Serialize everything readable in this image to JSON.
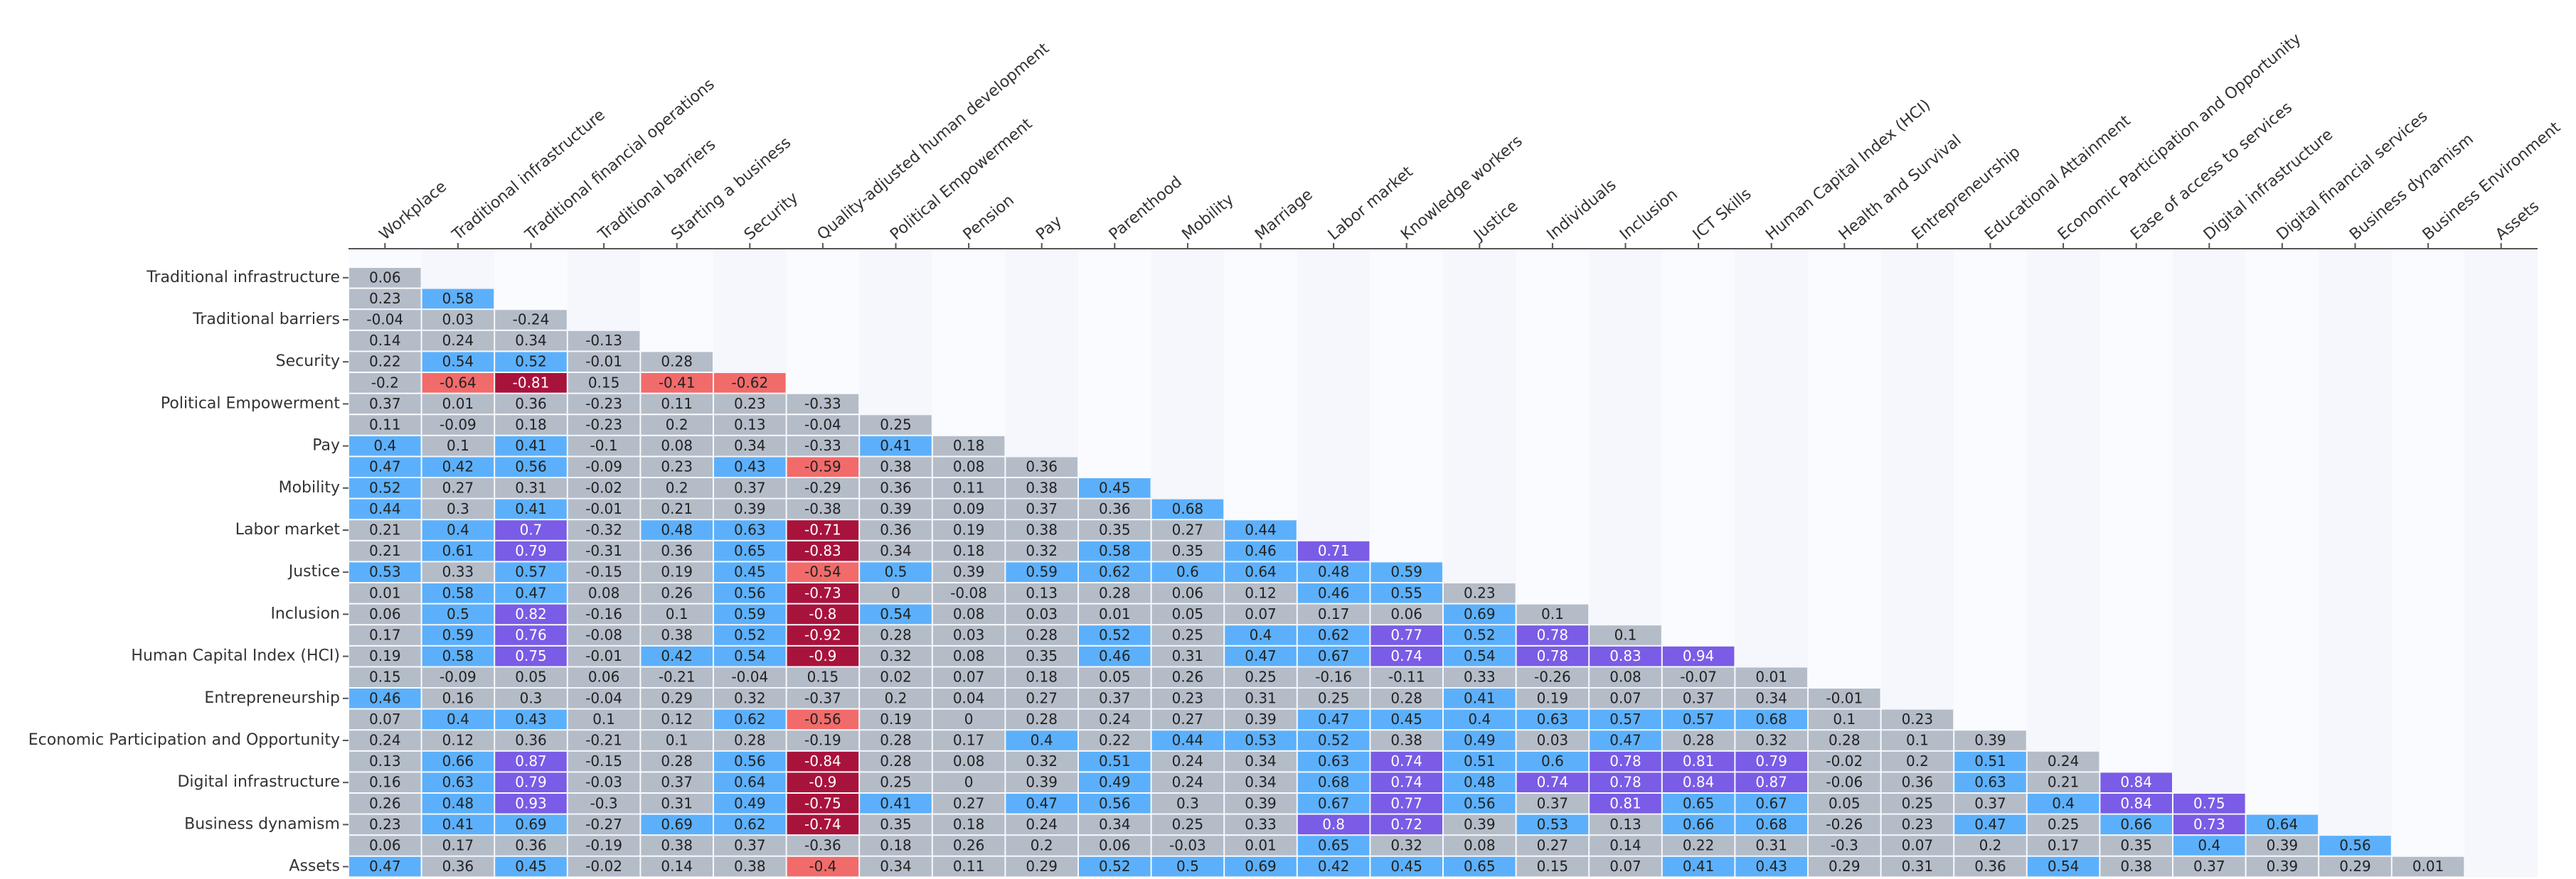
{
  "chart_data": {
    "type": "heatmap",
    "x_labels": [
      "Workplace",
      "Traditional infrastructure",
      "Traditional financial operations",
      "Traditional barriers",
      "Starting a business",
      "Security",
      "Quality-adjusted human development",
      "Political Empowerment",
      "Pension",
      "Pay",
      "Parenthood",
      "Mobility",
      "Marriage",
      "Labor market",
      "Knowledge workers",
      "Justice",
      "Individuals",
      "Inclusion",
      "ICT Skills",
      "Human Capital Index (HCI)",
      "Health and Survival",
      "Entrepreneurship",
      "Educational Attainment",
      "Economic Participation and Opportunity",
      "Ease of access to services",
      "Digital infrastructure",
      "Digital financial services",
      "Business dynamism",
      "Business Environment",
      "Assets"
    ],
    "y_labels": [
      "Traditional infrastructure",
      null,
      "Traditional barriers",
      null,
      "Security",
      null,
      "Political Empowerment",
      null,
      "Pay",
      null,
      "Mobility",
      null,
      "Labor market",
      null,
      "Justice",
      null,
      "Inclusion",
      null,
      "Human Capital Index (HCI)",
      null,
      "Entrepreneurship",
      null,
      "Economic Participation and Opportunity",
      null,
      "Digital infrastructure",
      null,
      "Business dynamism",
      null,
      "Assets"
    ],
    "values": [
      [
        0.06
      ],
      [
        0.23,
        0.58
      ],
      [
        -0.04,
        0.03,
        -0.24
      ],
      [
        0.14,
        0.24,
        0.34,
        -0.13
      ],
      [
        0.22,
        0.54,
        0.52,
        -0.01,
        0.28
      ],
      [
        -0.2,
        -0.64,
        -0.81,
        0.15,
        -0.41,
        -0.62
      ],
      [
        0.37,
        0.01,
        0.36,
        -0.23,
        0.11,
        0.23,
        -0.33
      ],
      [
        0.11,
        -0.09,
        0.18,
        -0.23,
        0.2,
        0.13,
        -0.04,
        0.25
      ],
      [
        0.4,
        0.1,
        0.41,
        -0.1,
        0.08,
        0.34,
        -0.33,
        0.41,
        0.18
      ],
      [
        0.47,
        0.42,
        0.56,
        -0.09,
        0.23,
        0.43,
        -0.59,
        0.38,
        0.08,
        0.36
      ],
      [
        0.52,
        0.27,
        0.31,
        -0.02,
        0.2,
        0.37,
        -0.29,
        0.36,
        0.11,
        0.38,
        0.45
      ],
      [
        0.44,
        0.3,
        0.41,
        -0.01,
        0.21,
        0.39,
        -0.38,
        0.39,
        0.09,
        0.37,
        0.36,
        0.68
      ],
      [
        0.21,
        0.4,
        0.7,
        -0.32,
        0.48,
        0.63,
        -0.71,
        0.36,
        0.19,
        0.38,
        0.35,
        0.27,
        0.44
      ],
      [
        0.21,
        0.61,
        0.79,
        -0.31,
        0.36,
        0.65,
        -0.83,
        0.34,
        0.18,
        0.32,
        0.58,
        0.35,
        0.46,
        0.71
      ],
      [
        0.53,
        0.33,
        0.57,
        -0.15,
        0.19,
        0.45,
        -0.54,
        0.5,
        0.39,
        0.59,
        0.62,
        0.6,
        0.64,
        0.48,
        0.59
      ],
      [
        0.01,
        0.58,
        0.47,
        0.08,
        0.26,
        0.56,
        -0.73,
        0,
        -0.08,
        0.13,
        0.28,
        0.06,
        0.12,
        0.46,
        0.55,
        0.23
      ],
      [
        0.06,
        0.5,
        0.82,
        -0.16,
        0.1,
        0.59,
        -0.8,
        0.54,
        0.08,
        0.03,
        0.01,
        0.05,
        0.07,
        0.17,
        0.06,
        0.69,
        0.1
      ],
      [
        0.17,
        0.59,
        0.76,
        -0.08,
        0.38,
        0.52,
        -0.92,
        0.28,
        0.03,
        0.28,
        0.52,
        0.25,
        0.4,
        0.62,
        0.77,
        0.52,
        0.78,
        0.1
      ],
      [
        0.19,
        0.58,
        0.75,
        -0.01,
        0.42,
        0.54,
        -0.9,
        0.32,
        0.08,
        0.35,
        0.46,
        0.31,
        0.47,
        0.67,
        0.74,
        0.54,
        0.78,
        0.83,
        0.94
      ],
      [
        0.15,
        -0.09,
        0.05,
        0.06,
        -0.21,
        -0.04,
        0.15,
        0.02,
        0.07,
        0.18,
        0.05,
        0.26,
        0.25,
        -0.16,
        -0.11,
        0.33,
        -0.26,
        0.08,
        -0.07,
        0.01
      ],
      [
        0.46,
        0.16,
        0.3,
        -0.04,
        0.29,
        0.32,
        -0.37,
        0.2,
        0.04,
        0.27,
        0.37,
        0.23,
        0.31,
        0.25,
        0.28,
        0.41,
        0.19,
        0.07,
        0.37,
        0.34,
        -0.01
      ],
      [
        0.07,
        0.4,
        0.43,
        0.1,
        0.12,
        0.62,
        -0.56,
        0.19,
        0,
        0.28,
        0.24,
        0.27,
        0.39,
        0.47,
        0.45,
        0.4,
        0.63,
        0.57,
        0.57,
        0.68,
        0.1,
        0.23
      ],
      [
        0.24,
        0.12,
        0.36,
        -0.21,
        0.1,
        0.28,
        -0.19,
        0.28,
        0.17,
        0.4,
        0.22,
        0.44,
        0.53,
        0.52,
        0.38,
        0.49,
        0.03,
        0.47,
        0.28,
        0.32,
        0.28,
        0.1,
        0.39
      ],
      [
        0.13,
        0.66,
        0.87,
        -0.15,
        0.28,
        0.56,
        -0.84,
        0.28,
        0.08,
        0.32,
        0.51,
        0.24,
        0.34,
        0.63,
        0.74,
        0.51,
        0.6,
        0.78,
        0.81,
        0.79,
        -0.02,
        0.2,
        0.51,
        0.24
      ],
      [
        0.16,
        0.63,
        0.79,
        -0.03,
        0.37,
        0.64,
        -0.9,
        0.25,
        0,
        0.39,
        0.49,
        0.24,
        0.34,
        0.68,
        0.74,
        0.48,
        0.74,
        0.78,
        0.84,
        0.87,
        -0.06,
        0.36,
        0.63,
        0.21,
        0.84
      ],
      [
        0.26,
        0.48,
        0.93,
        -0.3,
        0.31,
        0.49,
        -0.75,
        0.41,
        0.27,
        0.47,
        0.56,
        0.3,
        0.39,
        0.67,
        0.77,
        0.56,
        0.37,
        0.81,
        0.65,
        0.67,
        0.05,
        0.25,
        0.37,
        0.4,
        0.84,
        0.75
      ],
      [
        0.23,
        0.41,
        0.69,
        -0.27,
        0.69,
        0.62,
        -0.74,
        0.35,
        0.18,
        0.24,
        0.34,
        0.25,
        0.33,
        0.8,
        0.72,
        0.39,
        0.53,
        0.13,
        0.66,
        0.68,
        -0.26,
        0.23,
        0.47,
        0.25,
        0.66,
        0.73,
        0.64
      ],
      [
        0.06,
        0.17,
        0.36,
        -0.19,
        0.38,
        0.37,
        -0.36,
        0.18,
        0.26,
        0.2,
        0.06,
        -0.03,
        0.01,
        0.65,
        0.32,
        0.08,
        0.27,
        0.14,
        0.22,
        0.31,
        -0.3,
        0.07,
        0.2,
        0.17,
        0.35,
        0.4,
        0.39,
        0.56
      ],
      [
        0.47,
        0.36,
        0.45,
        -0.02,
        0.14,
        0.38,
        -0.4,
        0.34,
        0.11,
        0.29,
        0.52,
        0.5,
        0.69,
        0.42,
        0.45,
        0.65,
        0.15,
        0.07,
        0.41,
        0.43,
        0.29,
        0.31,
        0.36,
        0.54,
        0.38,
        0.37,
        0.39,
        0.29,
        0.01
      ]
    ],
    "color_breaks": [
      -0.7,
      -0.4,
      0.4,
      0.7
    ],
    "colors": [
      "#a8133c",
      "#f26b6b",
      "#b4bcc8",
      "#5cb0fb",
      "#7a5ce6"
    ]
  }
}
